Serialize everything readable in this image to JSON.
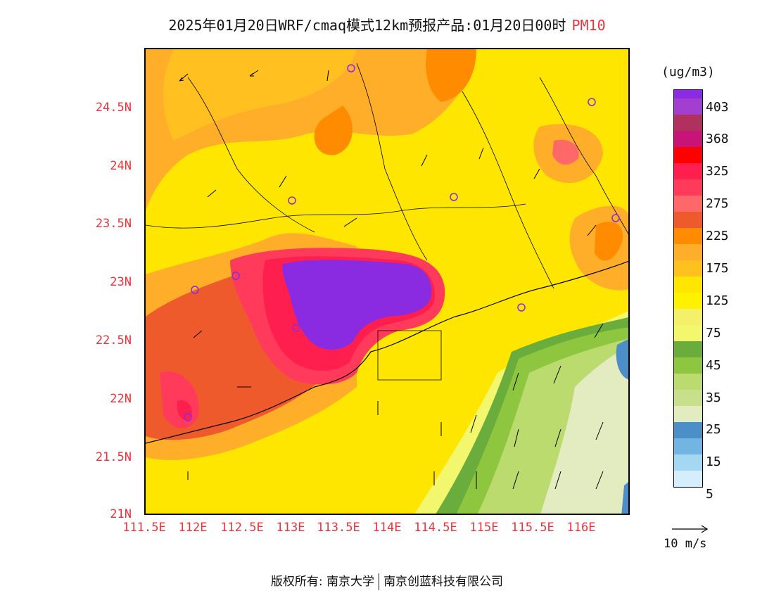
{
  "title": {
    "main": "2025年01月20日WRF/cmaq模式12km预报产品:01月20日00时",
    "pollutant": "PM10"
  },
  "axes": {
    "y_ticks": [
      "24.5N",
      "24N",
      "23.5N",
      "23N",
      "22.5N",
      "22N",
      "21.5N",
      "21N"
    ],
    "x_ticks": [
      "111.5E",
      "112E",
      "112.5E",
      "113E",
      "113.5E",
      "114E",
      "114.5E",
      "115E",
      "115.5E",
      "116E"
    ],
    "lon_range": [
      111.5,
      116.5
    ],
    "lat_range": [
      21,
      25
    ]
  },
  "legend": {
    "unit": "(ug/m3)",
    "levels": [
      "403",
      "368",
      "325",
      "275",
      "225",
      "175",
      "125",
      "75",
      "45",
      "35",
      "25",
      "15",
      "5"
    ],
    "colors": [
      "#8a2be2",
      "#a23fd0",
      "#b0305e",
      "#c81478",
      "#ff0000",
      "#ff1f4f",
      "#ff3a5a",
      "#ff6868",
      "#ee5a2c",
      "#ff8c00",
      "#ffae2a",
      "#ffc020",
      "#ffe600",
      "#fff200",
      "#f4f06a",
      "#f2f76e",
      "#6aad3c",
      "#8ec63f",
      "#bcdb6e",
      "#c8e08c",
      "#e2ecc0",
      "#4c8fc8",
      "#72b4e2",
      "#a4d8f2",
      "#d6eefb",
      "#ffffff"
    ]
  },
  "wind": {
    "reference_label": "10 m/s"
  },
  "copyright": {
    "owner1": "版权所有: 南京大学",
    "owner2": "南京创蓝科技有限公司"
  }
}
